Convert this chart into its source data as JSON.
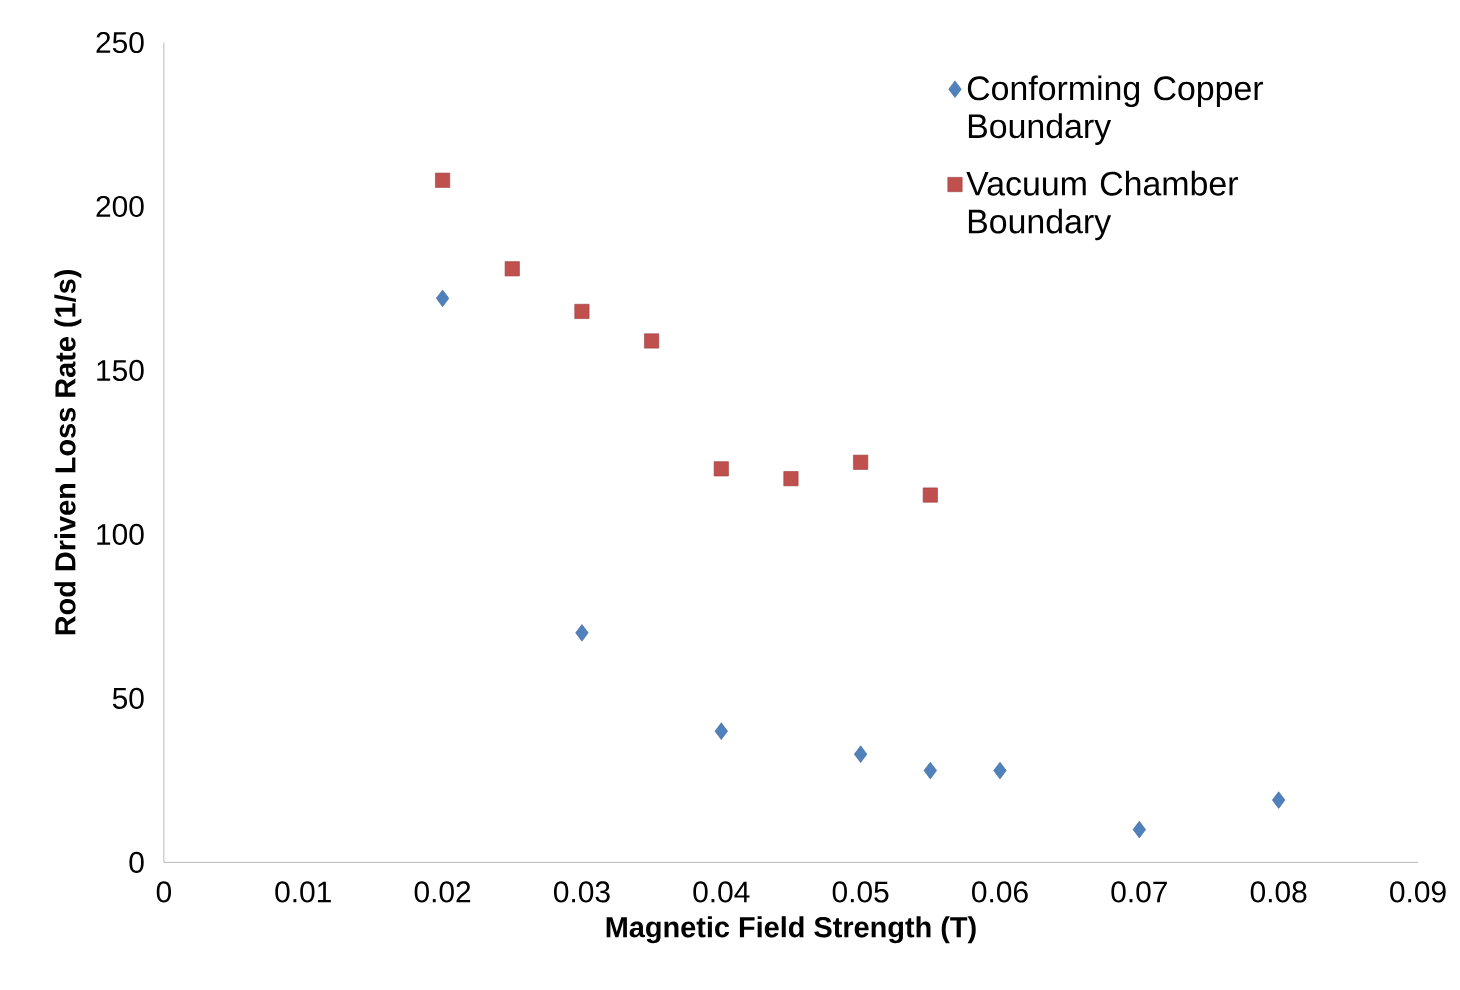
{
  "chart_data": {
    "type": "scatter",
    "xlabel": "Magnetic Field Strength (T)",
    "ylabel": "Rod Driven Loss Rate (1/s)",
    "xlim": [
      0,
      0.09
    ],
    "xticks": [
      0,
      0.01,
      0.02,
      0.03,
      0.04,
      0.05,
      0.06,
      0.07,
      0.08,
      0.09
    ],
    "ylim": [
      0,
      250
    ],
    "yticks": [
      0,
      50,
      100,
      150,
      200,
      250
    ],
    "grid": false,
    "legend": "top right",
    "series": [
      {
        "name": "Conforming Copper Boundary",
        "color": "#4f81bd",
        "marker": "diamond",
        "x": [
          0.02,
          0.03,
          0.04,
          0.05,
          0.055,
          0.06,
          0.07,
          0.08
        ],
        "values": [
          172,
          70,
          40,
          33,
          28,
          28,
          10,
          19
        ]
      },
      {
        "name": "Vacuum Chamber Boundary",
        "color": "#c0504d",
        "marker": "square",
        "x": [
          0.02,
          0.025,
          0.03,
          0.035,
          0.04,
          0.045,
          0.05,
          0.055
        ],
        "values": [
          208,
          181,
          168,
          159,
          120,
          117,
          122,
          112
        ]
      }
    ]
  }
}
